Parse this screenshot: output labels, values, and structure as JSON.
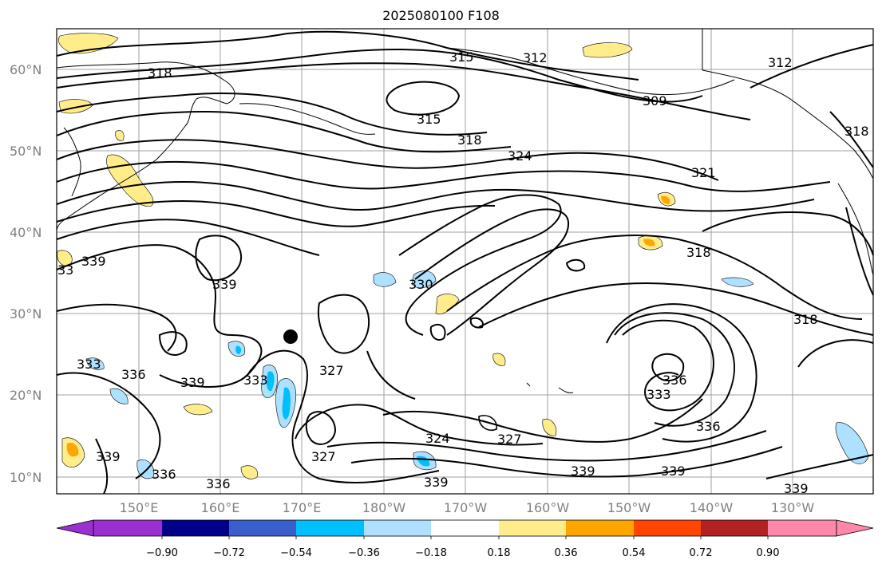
{
  "title": "2025080100 F108",
  "lat_labels": [
    "60°N",
    "50°N",
    "40°N",
    "30°N",
    "20°N",
    "10°N"
  ],
  "lon_labels": [
    "150°E",
    "160°E",
    "170°E",
    "180°W",
    "170°W",
    "160°W",
    "150°W",
    "140°W",
    "130°W"
  ],
  "contour_labels": [
    "318",
    "315",
    "312",
    "312",
    "309",
    "315",
    "318",
    "324",
    "321",
    "318",
    "339",
    "339",
    "339",
    "330",
    "318",
    "318",
    "333",
    "336",
    "339",
    "333",
    "327",
    "336",
    "333",
    "324",
    "327",
    "336",
    "327",
    "339",
    "339",
    "339",
    "336",
    "336",
    "339",
    "33"
  ],
  "colorbar": {
    "ticks": [
      "−0.90",
      "−0.72",
      "−0.54",
      "−0.36",
      "−0.18",
      "0.18",
      "0.36",
      "0.54",
      "0.72",
      "0.90"
    ],
    "colors": [
      "#9b30d0",
      "#00008b",
      "#3a5fcd",
      "#00bfff",
      "#aee0ff",
      "#ffffff",
      "#ffec8b",
      "#ffa500",
      "#ff4500",
      "#b22222",
      "#ff88aa"
    ]
  },
  "colors": {
    "frame": "#000000",
    "grid": "#a0a0a0",
    "contour": "#000000"
  },
  "marker": {
    "lat": 27,
    "lon": 170
  }
}
